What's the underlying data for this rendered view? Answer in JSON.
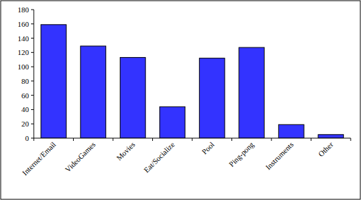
{
  "chart_data": {
    "type": "bar",
    "categories": [
      "Internet/Email",
      "VideoGames",
      "Movies",
      "Eat/Socialize",
      "Pool",
      "Ping-pong",
      "Instruments",
      "Other"
    ],
    "values": [
      159,
      129,
      113,
      44,
      112,
      127,
      19,
      5
    ],
    "color": "#3333ff",
    "ylim": [
      0,
      180
    ],
    "yticks": [
      0,
      20,
      40,
      60,
      80,
      100,
      120,
      140,
      160,
      180
    ],
    "grid": false
  }
}
